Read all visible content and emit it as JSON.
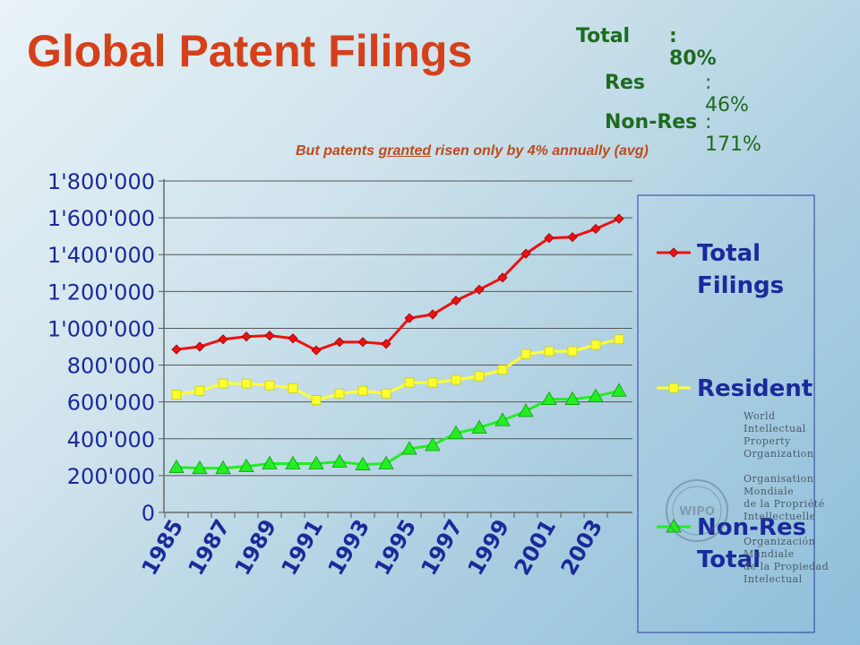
{
  "header": {
    "title": "Global Patent Filings",
    "stats": [
      {
        "label": "Total",
        "value": ": 80%"
      },
      {
        "label": "Res",
        "value": ": 46%"
      },
      {
        "label": "Non-Res",
        "value": ": 171%"
      }
    ],
    "subtitle_pre": "But patents ",
    "subtitle_em": "granted",
    "subtitle_post": " risen only by 4% annually (avg)"
  },
  "colors": {
    "total": "#ee1111",
    "resident": "#ffff33",
    "nonres": "#22ee22",
    "axis_text": "#1a2a9a",
    "title": "#d5401a"
  },
  "organization": {
    "logo_text": "WIPO",
    "en": [
      "World",
      "Intellectual",
      "Property",
      "Organization"
    ],
    "fr": [
      "Organisation",
      "Mondiale",
      "de la Propriété",
      "Intellectuelle"
    ],
    "es": [
      "Organización",
      "Mundiale",
      "de la Propiedad",
      "Intelectual"
    ]
  },
  "chart_data": {
    "type": "line",
    "title": "",
    "xlabel": "",
    "ylabel": "",
    "ylim": [
      0,
      1800000
    ],
    "yticks": [
      0,
      200000,
      400000,
      600000,
      800000,
      1000000,
      1200000,
      1400000,
      1600000,
      1800000
    ],
    "ytick_labels": [
      "0",
      "200'000",
      "400'000",
      "600'000",
      "800'000",
      "1'000'000",
      "1'200'000",
      "1'400'000",
      "1'600'000",
      "1'800'000"
    ],
    "x": [
      1985,
      1986,
      1987,
      1988,
      1989,
      1990,
      1991,
      1992,
      1993,
      1994,
      1995,
      1996,
      1997,
      1998,
      1999,
      2000,
      2001,
      2002,
      2003,
      2004
    ],
    "xtick_labels": [
      "1985",
      "1987",
      "1989",
      "1991",
      "1993",
      "1995",
      "1997",
      "1999",
      "2001",
      "2003"
    ],
    "legend_position": "right",
    "grid": true,
    "series": [
      {
        "name": "Total Filings",
        "legend_lines": [
          "Total",
          "Filings"
        ],
        "marker": "diamond",
        "values": [
          885000,
          900000,
          940000,
          955000,
          960000,
          945000,
          880000,
          925000,
          925000,
          915000,
          1055000,
          1075000,
          1150000,
          1210000,
          1275000,
          1405000,
          1490000,
          1495000,
          1540000,
          1595000
        ]
      },
      {
        "name": "Resident",
        "legend_lines": [
          "Resident"
        ],
        "marker": "square",
        "values": [
          640000,
          660000,
          700000,
          700000,
          690000,
          675000,
          610000,
          645000,
          660000,
          645000,
          705000,
          705000,
          720000,
          740000,
          775000,
          860000,
          875000,
          875000,
          910000,
          940000
        ]
      },
      {
        "name": "Non-Res Total",
        "legend_lines": [
          "Non-Res",
          "Total"
        ],
        "marker": "triangle",
        "values": [
          245000,
          240000,
          240000,
          250000,
          265000,
          265000,
          265000,
          275000,
          260000,
          265000,
          345000,
          365000,
          430000,
          460000,
          500000,
          550000,
          615000,
          615000,
          630000,
          660000
        ]
      }
    ]
  }
}
